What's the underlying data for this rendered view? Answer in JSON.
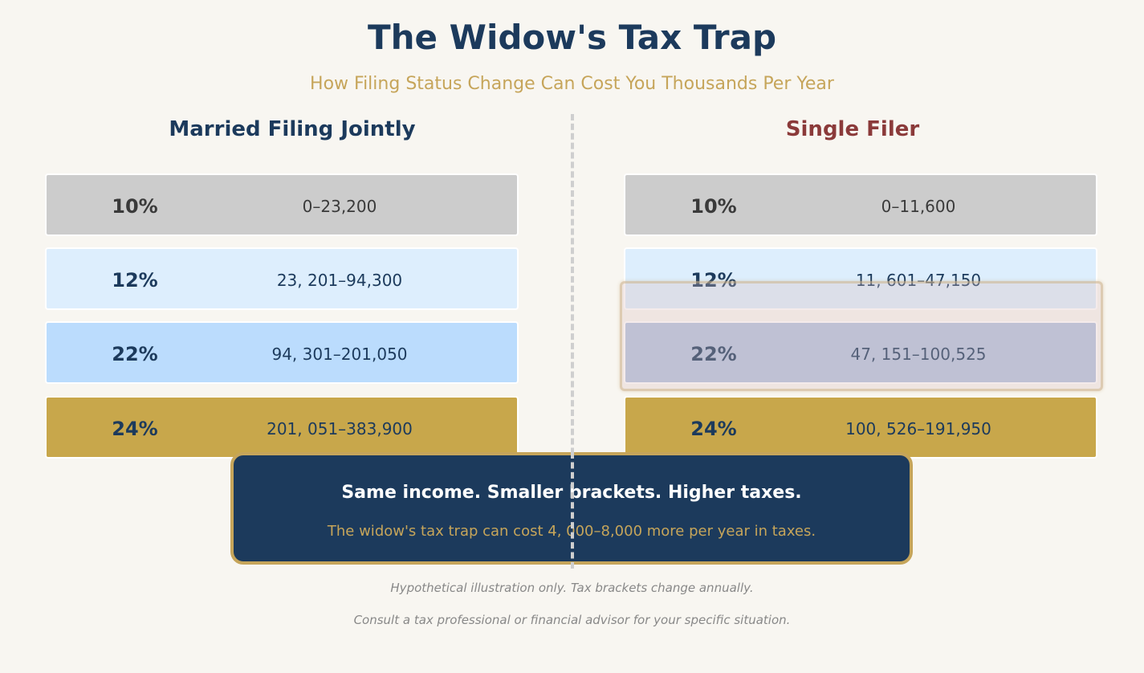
{
  "header": {
    "title": "The Widow's Tax Trap",
    "subtitle": "How Filing Status Change Can Cost You Thousands Per Year"
  },
  "married": {
    "heading": "Married Filing Jointly",
    "brackets": [
      {
        "rate": "10%",
        "range": "0–23,200"
      },
      {
        "rate": "12%",
        "range": "23, 201–94,300"
      },
      {
        "rate": "22%",
        "range": "94, 301–201,050"
      },
      {
        "rate": "24%",
        "range": "201, 051–383,900"
      }
    ]
  },
  "single": {
    "heading": "Single Filer",
    "brackets": [
      {
        "rate": "10%",
        "range": "0–11,600"
      },
      {
        "rate": "12%",
        "range": "11, 601–47,150"
      },
      {
        "rate": "22%",
        "range": "47, 151–100,525"
      },
      {
        "rate": "24%",
        "range": "100, 526–191,950"
      }
    ]
  },
  "callout": {
    "headline": "Same income. Smaller brackets. Higher taxes.",
    "detail": "The widow's tax trap can cost 4, 000–8,000 more per year in taxes."
  },
  "footnotes": [
    "Hypothetical illustration only. Tax brackets change annually.",
    "Consult a tax professional or financial advisor for your specific situation."
  ],
  "colors": {
    "navy": "#1c3a5c",
    "gold": "#c6a55a",
    "single_heading": "#8b3a3a",
    "bracket_10": "#cccccc",
    "bracket_12": "#ddeefd",
    "bracket_22": "#bbdcfd",
    "bracket_24": "#c8a74b"
  }
}
